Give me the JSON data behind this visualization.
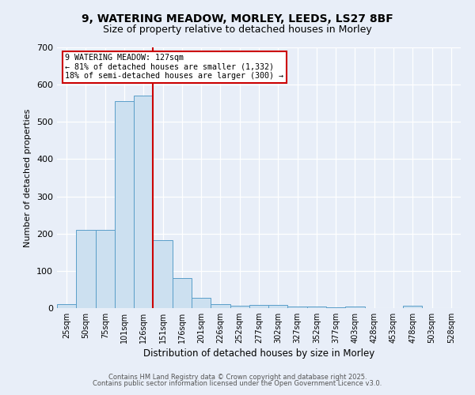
{
  "title_line1": "9, WATERING MEADOW, MORLEY, LEEDS, LS27 8BF",
  "title_line2": "Size of property relative to detached houses in Morley",
  "xlabel": "Distribution of detached houses by size in Morley",
  "ylabel": "Number of detached properties",
  "bar_color": "#cce0f0",
  "bar_edge_color": "#5a9ec9",
  "background_color": "#e8eef8",
  "grid_color": "#ffffff",
  "annotation_box_edge_color": "#cc0000",
  "property_line_color": "#cc0000",
  "categories": [
    "25sqm",
    "50sqm",
    "75sqm",
    "101sqm",
    "126sqm",
    "151sqm",
    "176sqm",
    "201sqm",
    "226sqm",
    "252sqm",
    "277sqm",
    "302sqm",
    "327sqm",
    "352sqm",
    "377sqm",
    "403sqm",
    "428sqm",
    "453sqm",
    "478sqm",
    "503sqm",
    "528sqm"
  ],
  "values": [
    10,
    210,
    210,
    555,
    570,
    183,
    80,
    27,
    10,
    6,
    8,
    8,
    5,
    5,
    3,
    5,
    0,
    0,
    6,
    0,
    0
  ],
  "ylim": [
    0,
    700
  ],
  "yticks": [
    0,
    100,
    200,
    300,
    400,
    500,
    600,
    700
  ],
  "property_bar_index": 4,
  "annotation_text_line1": "9 WATERING MEADOW: 127sqm",
  "annotation_text_line2": "← 81% of detached houses are smaller (1,332)",
  "annotation_text_line3": "18% of semi-detached houses are larger (300) →",
  "footer_line1": "Contains HM Land Registry data © Crown copyright and database right 2025.",
  "footer_line2": "Contains public sector information licensed under the Open Government Licence v3.0."
}
